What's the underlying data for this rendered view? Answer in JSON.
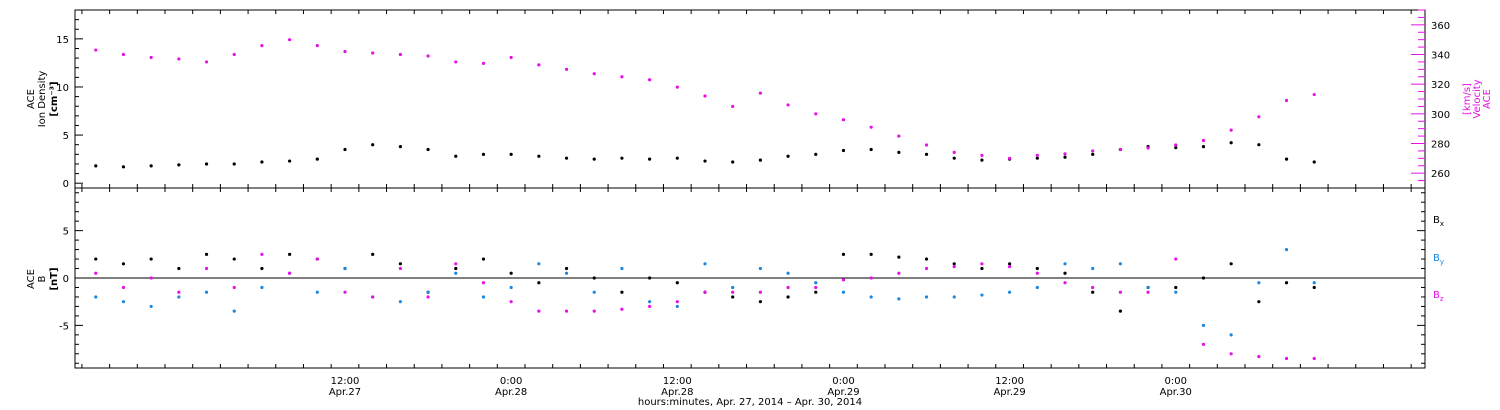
{
  "chart_data": [
    {
      "type": "scatter",
      "panel": "plasma",
      "x_unit": "hours since Apr.27 0:00",
      "xlim": [
        -7.5,
        90
      ],
      "y_left": {
        "title_lines": [
          "ACE",
          "Ion Density",
          "[cm⁻³]"
        ],
        "ylim": [
          -0.5,
          18
        ],
        "ticks": [
          0,
          5,
          10,
          15
        ],
        "color": "#000000"
      },
      "y_right": {
        "title_lines": [
          "ACE",
          "Velocity",
          "[km/s]"
        ],
        "ylim": [
          250,
          370
        ],
        "ticks": [
          260,
          280,
          300,
          320,
          340,
          360
        ],
        "color": "#e810e8"
      },
      "series": [
        {
          "axis": "left",
          "color": "#000000",
          "x": [
            -6,
            -4,
            -2,
            0,
            2,
            4,
            6,
            8,
            10,
            12,
            14,
            16,
            18,
            20,
            22,
            24,
            26,
            28,
            30,
            32,
            34,
            36,
            38,
            40,
            42,
            44,
            46,
            48,
            50,
            52,
            54,
            56,
            58,
            60,
            62,
            64,
            66,
            68,
            70,
            72,
            74,
            76,
            78,
            80,
            82
          ],
          "y": [
            1.8,
            1.7,
            1.8,
            1.9,
            2.0,
            2.0,
            2.2,
            2.3,
            2.5,
            3.5,
            4.0,
            3.8,
            3.5,
            2.8,
            3.0,
            3.0,
            2.8,
            2.6,
            2.5,
            2.6,
            2.5,
            2.6,
            2.3,
            2.2,
            2.4,
            2.8,
            3.0,
            3.4,
            3.5,
            3.2,
            3.0,
            2.6,
            2.4,
            2.5,
            2.6,
            2.7,
            3.0,
            3.5,
            3.8,
            3.7,
            3.8,
            4.2,
            4.0,
            2.5,
            2.2
          ]
        },
        {
          "axis": "right",
          "color": "#e810e8",
          "x": [
            -6,
            -4,
            -2,
            0,
            2,
            4,
            6,
            8,
            10,
            12,
            14,
            16,
            18,
            20,
            22,
            24,
            26,
            28,
            30,
            32,
            34,
            36,
            38,
            40,
            42,
            44,
            46,
            48,
            50,
            52,
            54,
            56,
            58,
            60,
            62,
            64,
            66,
            68,
            70,
            72,
            74,
            76,
            78,
            80,
            82
          ],
          "y": [
            343,
            340,
            338,
            337,
            335,
            340,
            346,
            350,
            346,
            342,
            341,
            340,
            339,
            335,
            334,
            338,
            333,
            330,
            327,
            325,
            323,
            318,
            312,
            305,
            314,
            306,
            300,
            296,
            291,
            285,
            279,
            274,
            272,
            270,
            272,
            273,
            275,
            276,
            277,
            279,
            282,
            289,
            298,
            309,
            313
          ]
        }
      ]
    },
    {
      "type": "scatter",
      "panel": "magnetic-field",
      "x_unit": "hours since Apr.27 0:00",
      "xlim": [
        -7.5,
        90
      ],
      "y": {
        "title_lines": [
          "ACE",
          "B",
          "[nT]"
        ],
        "ylim": [
          -9.5,
          9.5
        ],
        "ticks": [
          -5,
          0,
          5
        ],
        "zero_line": true
      },
      "legend": {
        "placement": "right",
        "entries": [
          {
            "name": "B",
            "subscript": "x",
            "color": "#000000"
          },
          {
            "name": "B",
            "subscript": "y",
            "color": "#1a88e0"
          },
          {
            "name": "B",
            "subscript": "z",
            "color": "#e810e8"
          }
        ]
      },
      "series": [
        {
          "name": "Bx",
          "color": "#000000",
          "x": [
            -6,
            -4,
            -2,
            0,
            2,
            4,
            6,
            8,
            10,
            12,
            14,
            16,
            18,
            20,
            22,
            24,
            26,
            28,
            30,
            32,
            34,
            36,
            38,
            40,
            42,
            44,
            46,
            48,
            50,
            52,
            54,
            56,
            58,
            60,
            62,
            64,
            66,
            68,
            70,
            72,
            74,
            76,
            78,
            80,
            82
          ],
          "y": [
            2.0,
            1.5,
            2.0,
            1.0,
            2.5,
            2.0,
            1.0,
            2.5,
            2.0,
            1.0,
            2.5,
            1.5,
            -1.5,
            1.0,
            2.0,
            0.5,
            -0.5,
            1.0,
            0.0,
            -1.5,
            0.0,
            -0.5,
            -1.5,
            -2.0,
            -2.5,
            -2.0,
            -1.5,
            2.5,
            2.5,
            2.2,
            2.0,
            1.5,
            1.0,
            1.5,
            1.0,
            0.5,
            -1.5,
            -3.5,
            -1.0,
            -1.0,
            0.0,
            1.5,
            -2.5,
            -0.5,
            -1.0
          ]
        },
        {
          "name": "By",
          "color": "#1a88e0",
          "x": [
            -6,
            -4,
            -2,
            0,
            2,
            4,
            6,
            8,
            10,
            12,
            14,
            16,
            18,
            20,
            22,
            24,
            26,
            28,
            30,
            32,
            34,
            36,
            38,
            40,
            42,
            44,
            46,
            48,
            50,
            52,
            54,
            56,
            58,
            60,
            62,
            64,
            66,
            68,
            70,
            72,
            74,
            76,
            78,
            80,
            82
          ],
          "y": [
            -2.0,
            -2.5,
            -3.0,
            -2.0,
            -1.5,
            -3.5,
            -1.0,
            0.5,
            -1.5,
            1.0,
            -2.0,
            -2.5,
            -1.5,
            0.5,
            -2.0,
            -1.0,
            1.5,
            0.5,
            -1.5,
            1.0,
            -2.5,
            -3.0,
            1.5,
            -1.0,
            1.0,
            0.5,
            -0.5,
            -1.5,
            -2.0,
            -2.2,
            -2.0,
            -2.0,
            -1.8,
            -1.5,
            -1.0,
            1.5,
            1.0,
            1.5,
            -1.0,
            -1.5,
            -5.0,
            -6.0,
            -0.5,
            3.0,
            -0.5
          ]
        },
        {
          "name": "Bz",
          "color": "#e810e8",
          "x": [
            -6,
            -4,
            -2,
            0,
            2,
            4,
            6,
            8,
            10,
            12,
            14,
            16,
            18,
            20,
            22,
            24,
            26,
            28,
            30,
            32,
            34,
            36,
            38,
            40,
            42,
            44,
            46,
            48,
            50,
            52,
            54,
            56,
            58,
            60,
            62,
            64,
            66,
            68,
            70,
            72,
            74,
            76,
            78,
            80,
            82
          ],
          "y": [
            0.5,
            -1.0,
            0.0,
            -1.5,
            1.0,
            -1.0,
            2.5,
            0.5,
            2.0,
            -1.5,
            -2.0,
            1.0,
            -2.0,
            1.5,
            -0.5,
            -2.5,
            -3.5,
            -3.5,
            -3.5,
            -3.3,
            -3.0,
            -2.5,
            -1.5,
            -1.5,
            -1.5,
            -1.0,
            -1.0,
            -0.2,
            0.0,
            0.5,
            1.0,
            1.2,
            1.5,
            1.2,
            0.5,
            -0.5,
            -1.0,
            -1.5,
            -1.5,
            2.0,
            -7.0,
            -8.0,
            -8.3,
            -8.5,
            -8.5
          ]
        }
      ]
    }
  ],
  "x_axis": {
    "tick_labels": [
      {
        "hour": 12,
        "time": "12:00",
        "date": "Apr.27"
      },
      {
        "hour": 24,
        "time": "0:00",
        "date": "Apr.28"
      },
      {
        "hour": 36,
        "time": "12:00",
        "date": "Apr.28"
      },
      {
        "hour": 48,
        "time": "0:00",
        "date": "Apr.29"
      },
      {
        "hour": 60,
        "time": "12:00",
        "date": "Apr.29"
      },
      {
        "hour": 72,
        "time": "0:00",
        "date": "Apr.30"
      }
    ],
    "title": "hours:minutes, Apr. 27, 2014 – Apr. 30, 2014"
  }
}
